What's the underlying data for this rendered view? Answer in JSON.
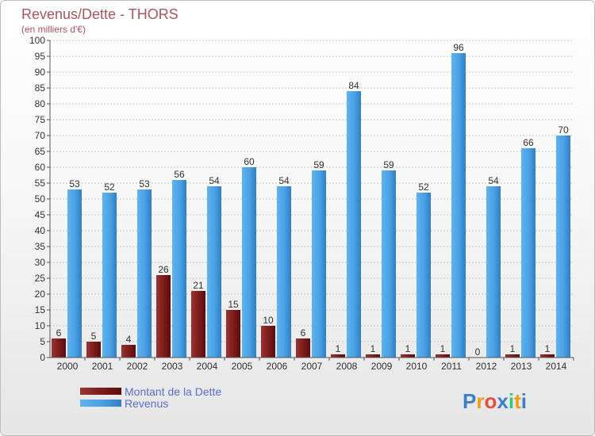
{
  "chart_data": {
    "type": "bar",
    "title": "Revenus/Dette - THORS",
    "subtitle": "(en milliers d'€)",
    "categories": [
      "2000",
      "2001",
      "2002",
      "2003",
      "2004",
      "2005",
      "2006",
      "2007",
      "2008",
      "2009",
      "2010",
      "2011",
      "2012",
      "2013",
      "2014"
    ],
    "series": [
      {
        "name": "Montant de la Dette",
        "color": "#7a1a1a",
        "values": [
          6,
          5,
          4,
          26,
          21,
          15,
          10,
          6,
          1,
          1,
          1,
          1,
          0,
          1,
          1
        ]
      },
      {
        "name": "Revenus",
        "color": "#4da3e6",
        "values": [
          53,
          52,
          53,
          56,
          54,
          60,
          54,
          59,
          84,
          59,
          52,
          96,
          54,
          66,
          70
        ]
      }
    ],
    "ylim": [
      0,
      100
    ],
    "yticks": [
      0,
      5,
      10,
      15,
      20,
      25,
      30,
      35,
      40,
      45,
      50,
      55,
      60,
      65,
      70,
      75,
      80,
      85,
      90,
      95,
      100
    ],
    "grid": true,
    "xlabel": "",
    "ylabel": "",
    "legend_position": "bottom-left"
  },
  "branding": {
    "logo_text": "Proxiti",
    "logo_letters": [
      "P",
      "r",
      "o",
      "x",
      "i",
      "t",
      "i"
    ],
    "logo_colors": [
      "#3b7fd0",
      "#f39c12",
      "#e74c3c",
      "#3b7fd0",
      "#2ecc71",
      "#f39c12",
      "#3b7fd0"
    ]
  }
}
